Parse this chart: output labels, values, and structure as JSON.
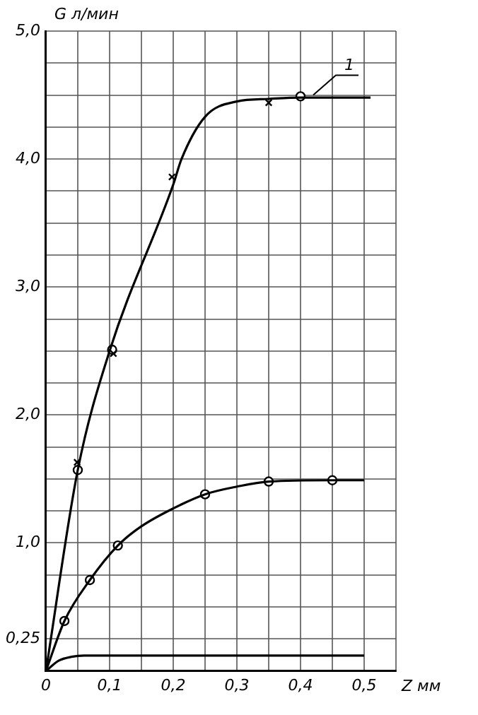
{
  "chart_data": {
    "type": "line",
    "xlabel": "Z мм",
    "ylabel": "G л/мин",
    "xlim": [
      0,
      0.55
    ],
    "ylim": [
      0,
      5
    ],
    "xticks": [
      {
        "value": 0,
        "label": "0"
      },
      {
        "value": 0.05,
        "label": null
      },
      {
        "value": 0.1,
        "label": "0,1"
      },
      {
        "value": 0.15,
        "label": null
      },
      {
        "value": 0.2,
        "label": "0,2"
      },
      {
        "value": 0.25,
        "label": null
      },
      {
        "value": 0.3,
        "label": "0,3"
      },
      {
        "value": 0.35,
        "label": null
      },
      {
        "value": 0.4,
        "label": "0,4"
      },
      {
        "value": 0.45,
        "label": null
      },
      {
        "value": 0.5,
        "label": "0,5"
      },
      {
        "value": 0.55,
        "label": null
      }
    ],
    "yticks": [
      {
        "value": 0,
        "label": null
      },
      {
        "value": 0.25,
        "label": "0,25"
      },
      {
        "value": 0.5,
        "label": null
      },
      {
        "value": 0.75,
        "label": null
      },
      {
        "value": 1,
        "label": "1,0"
      },
      {
        "value": 1.25,
        "label": null
      },
      {
        "value": 1.5,
        "label": null
      },
      {
        "value": 1.75,
        "label": null
      },
      {
        "value": 2,
        "label": "2,0"
      },
      {
        "value": 2.25,
        "label": null
      },
      {
        "value": 2.5,
        "label": null
      },
      {
        "value": 2.75,
        "label": null
      },
      {
        "value": 3,
        "label": "3,0"
      },
      {
        "value": 3.25,
        "label": null
      },
      {
        "value": 3.5,
        "label": null
      },
      {
        "value": 3.75,
        "label": null
      },
      {
        "value": 4,
        "label": "4,0"
      },
      {
        "value": 4.25,
        "label": null
      },
      {
        "value": 4.5,
        "label": null
      },
      {
        "value": 4.75,
        "label": null
      },
      {
        "value": 5,
        "label": "5,0"
      }
    ],
    "grid": true,
    "legend": false,
    "annotations": [
      {
        "text": "1",
        "x": 0.42,
        "y": 4.5
      }
    ],
    "series": [
      {
        "color": "#000000",
        "marker": "none",
        "x": [
          0,
          0.05,
          0.1,
          0.2,
          0.213,
          0.25,
          0.3,
          0.35,
          0.4,
          0.51
        ],
        "values": [
          0,
          1.57,
          2.5,
          3.8,
          4.0,
          4.33,
          4.45,
          4.47,
          4.48,
          4.48
        ]
      },
      {
        "color": "#000000",
        "marker": "none",
        "x": [
          0,
          0.029,
          0.069,
          0.113,
          0.15,
          0.2,
          0.25,
          0.3,
          0.35,
          0.45,
          0.5
        ],
        "values": [
          0,
          0.39,
          0.71,
          0.98,
          1.13,
          1.27,
          1.38,
          1.44,
          1.48,
          1.49,
          1.49
        ]
      },
      {
        "color": "#000000",
        "marker": "none",
        "x": [
          0,
          0.02,
          0.04,
          0.06,
          0.5
        ],
        "values": [
          0,
          0.08,
          0.11,
          0.12,
          0.12
        ]
      },
      {
        "type": "scatter",
        "color": "#000000",
        "marker": "cross",
        "x": [
          0.049,
          0.106,
          0.198,
          0.35
        ],
        "values": [
          1.63,
          2.48,
          3.86,
          4.44
        ]
      },
      {
        "type": "scatter",
        "color": "#000000",
        "marker": "circle",
        "x": [
          0.05,
          0.104,
          0.4,
          0.029,
          0.069,
          0.113,
          0.25,
          0.35,
          0.45
        ],
        "values": [
          1.57,
          2.51,
          4.49,
          0.39,
          0.71,
          0.98,
          1.38,
          1.48,
          1.49
        ]
      }
    ]
  }
}
